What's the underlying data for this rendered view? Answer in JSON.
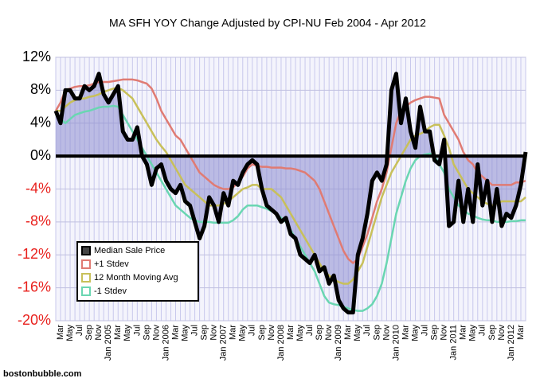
{
  "chart_data": {
    "type": "line",
    "title": "MA SFH YOY Change Adjusted by CPI-NU Feb 2004 - Apr 2012",
    "source": "bostonbubble.com",
    "categories": [
      null,
      "Mar",
      null,
      "May",
      null,
      "Jul",
      null,
      "Sep",
      null,
      "Nov",
      null,
      "Jan 2005",
      null,
      "Mar",
      null,
      "May",
      null,
      "Jul",
      null,
      "Sep",
      null,
      "Nov",
      null,
      "Jan 2006",
      null,
      "Mar",
      null,
      "May",
      null,
      "Jul",
      null,
      "Sep",
      null,
      "Nov",
      null,
      "Jan 2007",
      null,
      "Mar",
      null,
      "May",
      null,
      "Jul",
      null,
      "Sep",
      null,
      "Nov",
      null,
      "Jan 2008",
      null,
      "Mar",
      null,
      "May",
      null,
      "Jul",
      null,
      "Sep",
      null,
      "Nov",
      null,
      "Jan 2009",
      null,
      "Mar",
      null,
      "May",
      null,
      "Jul",
      null,
      "Sep",
      null,
      "Nov",
      null,
      "Jan 2010",
      null,
      "Mar",
      null,
      "May",
      null,
      "Jul",
      null,
      "Sep",
      null,
      "Nov",
      null,
      "Jan 2011",
      null,
      "Mar",
      null,
      "May",
      null,
      "Jul",
      null,
      "Sep",
      null,
      "Nov",
      null,
      "Jan 2012",
      null,
      "Mar",
      null
    ],
    "series": [
      {
        "name": "Median Sale Price",
        "color": "#000000",
        "fill": "#8c8cd0",
        "values": [
          5.5,
          4,
          8,
          8,
          7,
          7,
          8.5,
          8,
          8.5,
          10,
          7.5,
          6.5,
          7.5,
          8.5,
          3,
          2,
          2,
          3.5,
          0,
          -1,
          -3.5,
          -1.5,
          -1,
          -3,
          -4,
          -4.5,
          -3.5,
          -5.5,
          -6,
          -8,
          -10,
          -8.5,
          -5,
          -6,
          -8,
          -4.5,
          -6,
          -3,
          -3.5,
          -2,
          -1,
          -0.5,
          -1,
          -4,
          -6,
          -6.5,
          -7,
          -8,
          -7.5,
          -9.5,
          -10,
          -12,
          -12.5,
          -13,
          -12,
          -14,
          -13.5,
          -15.5,
          -14.5,
          -17.5,
          -18.5,
          -19,
          -19,
          -12,
          -10,
          -7,
          -3,
          -2,
          -3,
          -1,
          8,
          10,
          4,
          7,
          3,
          1,
          6,
          3,
          3,
          -0.5,
          -1,
          2,
          -8.5,
          -8,
          -3,
          -8,
          -4,
          -8,
          -1,
          -6,
          -3,
          -8,
          -4,
          -8.5,
          -7,
          -7.5,
          -6,
          -3.5,
          0.5
        ]
      },
      {
        "name": "+1 Stdev",
        "color": "#e07b73",
        "values": [
          5.5,
          6.5,
          8,
          8.2,
          8.4,
          8.5,
          8.5,
          8.6,
          8.8,
          9,
          9,
          9,
          9.1,
          9.2,
          9.3,
          9.3,
          9.3,
          9.2,
          9,
          8.8,
          8.2,
          7,
          5.5,
          4.5,
          3.5,
          2.5,
          2,
          1,
          0,
          -1,
          -2,
          -2.5,
          -3,
          -3.5,
          -3.8,
          -4,
          -4,
          -3.8,
          -3.2,
          -2.5,
          -1.5,
          -1,
          -1.2,
          -1.3,
          -1.3,
          -1.4,
          -1.4,
          -1.4,
          -1.5,
          -1.5,
          -1.6,
          -1.8,
          -2,
          -2.5,
          -3,
          -4,
          -5.5,
          -7,
          -8.5,
          -10,
          -11.5,
          -12.5,
          -13,
          -12.5,
          -11,
          -9.5,
          -7.5,
          -5.5,
          -4,
          -2,
          1,
          4,
          5.5,
          6,
          6.5,
          6.8,
          7,
          7.2,
          7.2,
          7.1,
          7,
          5,
          4,
          3,
          2,
          0.5,
          -0.5,
          -1,
          -2,
          -2.5,
          -3,
          -3.5,
          -3.5,
          -3.5,
          -3.5,
          -3.5,
          -3.2,
          -3.2,
          -3
        ]
      },
      {
        "name": "12 Month Moving Avg",
        "color": "#c8c05a",
        "values": [
          5.5,
          5.5,
          6,
          6.5,
          6.8,
          7,
          7,
          7.2,
          7.3,
          7.5,
          7.8,
          8,
          8.2,
          8.3,
          8,
          7.5,
          7,
          6,
          5,
          4,
          3,
          2,
          1.2,
          0.5,
          -0.5,
          -1.5,
          -2.5,
          -3.5,
          -4,
          -4.5,
          -5,
          -5.5,
          -6,
          -6,
          -6,
          -5.8,
          -5.5,
          -5,
          -4.5,
          -4,
          -3.8,
          -3.5,
          -3.5,
          -4,
          -4,
          -4,
          -4.5,
          -5,
          -6,
          -7,
          -8,
          -9,
          -10,
          -11,
          -12,
          -13,
          -14,
          -14.5,
          -15,
          -15.3,
          -15.5,
          -15.5,
          -15,
          -14,
          -13,
          -11,
          -9,
          -7,
          -5,
          -3.5,
          -2,
          -1,
          0,
          1,
          2,
          2.5,
          2.7,
          3,
          3.5,
          3.8,
          3.8,
          2.5,
          1,
          -1,
          -2,
          -3,
          -4,
          -4.5,
          -5,
          -5.5,
          -5.8,
          -6,
          -5.8,
          -5.5,
          -5.5,
          -5.5,
          -5.5,
          -5.5,
          -5
        ]
      },
      {
        "name": "-1 Stdev",
        "color": "#6ad6b2",
        "values": [
          5,
          4.5,
          4,
          4.5,
          5,
          5.2,
          5.4,
          5.5,
          5.7,
          5.9,
          6,
          6,
          6.1,
          6,
          5,
          4,
          3,
          2,
          1,
          0,
          -1,
          -2,
          -3,
          -4,
          -5,
          -6,
          -6.5,
          -7,
          -7.5,
          -7.8,
          -8,
          -8,
          -8,
          -8.1,
          -8.1,
          -8.1,
          -8.1,
          -7.8,
          -7.3,
          -6.5,
          -6,
          -6,
          -6,
          -6.2,
          -6.4,
          -6.7,
          -7,
          -7.5,
          -8,
          -9,
          -10,
          -11,
          -12,
          -13,
          -14,
          -15.5,
          -17,
          -17.8,
          -18,
          -18.1,
          -18.3,
          -18.5,
          -18.7,
          -18.8,
          -18.8,
          -18.5,
          -18,
          -17,
          -15.5,
          -13,
          -10,
          -7,
          -5,
          -3,
          -1.5,
          -0.5,
          0,
          0.2,
          0.3,
          0,
          -1,
          -2,
          -4,
          -5,
          -6,
          -6.5,
          -7,
          -7.2,
          -7.5,
          -7.7,
          -7.8,
          -7.8,
          -8,
          -8,
          -8,
          -7.9,
          -7.9,
          -7.8,
          -7.8
        ]
      }
    ],
    "ylim": [
      -20,
      12
    ],
    "yticks": [
      {
        "value": -20,
        "label": "-20%"
      },
      {
        "value": -16,
        "label": "-16%"
      },
      {
        "value": -12,
        "label": "-12%"
      },
      {
        "value": -8,
        "label": "-8%"
      },
      {
        "value": -4,
        "label": "-4%"
      },
      {
        "value": 0,
        "label": "0%"
      },
      {
        "value": 4,
        "label": "4%"
      },
      {
        "value": 8,
        "label": "8%"
      },
      {
        "value": 12,
        "label": "12%"
      }
    ],
    "grid": true,
    "legend": "lower left"
  }
}
